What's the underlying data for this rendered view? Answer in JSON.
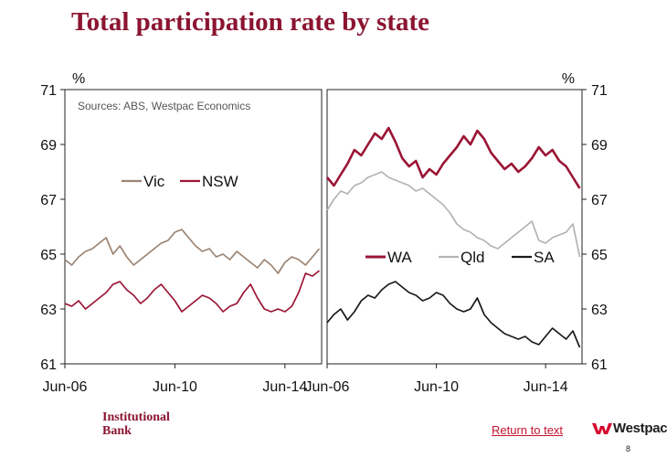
{
  "title": "Total participation rate by state",
  "brand": {
    "line1": "Institutional",
    "line2": "Bank",
    "logo_text": "Westpac"
  },
  "footer": {
    "return_link": "Return to text",
    "page_number": "8"
  },
  "colors": {
    "brand_red": "#8b1431",
    "link_red": "#c4122f"
  },
  "chart_data": [
    {
      "type": "line",
      "unit_label": "%",
      "source_note": "Sources: ABS, Westpac Economics",
      "ylim": [
        61,
        71
      ],
      "y_ticks": [
        "61",
        "63",
        "65",
        "67",
        "69",
        "71"
      ],
      "x_range": [
        "2006-06",
        "2015-10"
      ],
      "x_ticks": [
        {
          "date": "2006-06",
          "label": "Jun-06"
        },
        {
          "date": "2010-06",
          "label": "Jun-10"
        },
        {
          "date": "2014-06",
          "label": "Jun-14"
        }
      ],
      "legend_position": "center-left",
      "series": [
        {
          "name": "Vic",
          "color": "#9a8474",
          "x": [
            "2006-06",
            "2006-09",
            "2006-12",
            "2007-03",
            "2007-06",
            "2007-09",
            "2007-12",
            "2008-03",
            "2008-06",
            "2008-09",
            "2008-12",
            "2009-03",
            "2009-06",
            "2009-09",
            "2009-12",
            "2010-03",
            "2010-06",
            "2010-09",
            "2010-12",
            "2011-03",
            "2011-06",
            "2011-09",
            "2011-12",
            "2012-03",
            "2012-06",
            "2012-09",
            "2012-12",
            "2013-03",
            "2013-06",
            "2013-09",
            "2013-12",
            "2014-03",
            "2014-06",
            "2014-09",
            "2014-12",
            "2015-03",
            "2015-06",
            "2015-09"
          ],
          "values": [
            64.8,
            64.6,
            64.9,
            65.1,
            65.2,
            65.4,
            65.6,
            65.0,
            65.3,
            64.9,
            64.6,
            64.8,
            65.0,
            65.2,
            65.4,
            65.5,
            65.8,
            65.9,
            65.6,
            65.3,
            65.1,
            65.2,
            64.9,
            65.0,
            64.8,
            65.1,
            64.9,
            64.7,
            64.5,
            64.8,
            64.6,
            64.3,
            64.7,
            64.9,
            64.8,
            64.6,
            64.9,
            65.2
          ]
        },
        {
          "name": "NSW",
          "color": "#9b1535",
          "x": [
            "2006-06",
            "2006-09",
            "2006-12",
            "2007-03",
            "2007-06",
            "2007-09",
            "2007-12",
            "2008-03",
            "2008-06",
            "2008-09",
            "2008-12",
            "2009-03",
            "2009-06",
            "2009-09",
            "2009-12",
            "2010-03",
            "2010-06",
            "2010-09",
            "2010-12",
            "2011-03",
            "2011-06",
            "2011-09",
            "2011-12",
            "2012-03",
            "2012-06",
            "2012-09",
            "2012-12",
            "2013-03",
            "2013-06",
            "2013-09",
            "2013-12",
            "2014-03",
            "2014-06",
            "2014-09",
            "2014-12",
            "2015-03",
            "2015-06",
            "2015-09"
          ],
          "values": [
            63.2,
            63.1,
            63.3,
            63.0,
            63.2,
            63.4,
            63.6,
            63.9,
            64.0,
            63.7,
            63.5,
            63.2,
            63.4,
            63.7,
            63.9,
            63.6,
            63.3,
            62.9,
            63.1,
            63.3,
            63.5,
            63.4,
            63.2,
            62.9,
            63.1,
            63.2,
            63.6,
            63.9,
            63.4,
            63.0,
            62.9,
            63.0,
            62.9,
            63.1,
            63.6,
            64.3,
            64.2,
            64.4
          ]
        }
      ],
      "legend": [
        "Vic",
        "NSW"
      ]
    },
    {
      "type": "line",
      "unit_label": "%",
      "ylim": [
        61,
        71
      ],
      "y_ticks": [
        "61",
        "63",
        "65",
        "67",
        "69",
        "71"
      ],
      "x_range": [
        "2006-06",
        "2015-10"
      ],
      "x_ticks": [
        {
          "date": "2006-06",
          "label": "Jun-06"
        },
        {
          "date": "2010-06",
          "label": "Jun-10"
        },
        {
          "date": "2014-06",
          "label": "Jun-14"
        }
      ],
      "legend_position": "center",
      "series": [
        {
          "name": "WA",
          "color": "#9b1535",
          "x": [
            "2006-06",
            "2006-09",
            "2006-12",
            "2007-03",
            "2007-06",
            "2007-09",
            "2007-12",
            "2008-03",
            "2008-06",
            "2008-09",
            "2008-12",
            "2009-03",
            "2009-06",
            "2009-09",
            "2009-12",
            "2010-03",
            "2010-06",
            "2010-09",
            "2010-12",
            "2011-03",
            "2011-06",
            "2011-09",
            "2011-12",
            "2012-03",
            "2012-06",
            "2012-09",
            "2012-12",
            "2013-03",
            "2013-06",
            "2013-09",
            "2013-12",
            "2014-03",
            "2014-06",
            "2014-09",
            "2014-12",
            "2015-03",
            "2015-06",
            "2015-09"
          ],
          "values": [
            67.8,
            67.5,
            67.9,
            68.3,
            68.8,
            68.6,
            69.0,
            69.4,
            69.2,
            69.6,
            69.1,
            68.5,
            68.2,
            68.4,
            67.8,
            68.1,
            67.9,
            68.3,
            68.6,
            68.9,
            69.3,
            69.0,
            69.5,
            69.2,
            68.7,
            68.4,
            68.1,
            68.3,
            68.0,
            68.2,
            68.5,
            68.9,
            68.6,
            68.8,
            68.4,
            68.2,
            67.8,
            67.4
          ]
        },
        {
          "name": "Qld",
          "color": "#b3b3b3",
          "x": [
            "2006-06",
            "2006-09",
            "2006-12",
            "2007-03",
            "2007-06",
            "2007-09",
            "2007-12",
            "2008-03",
            "2008-06",
            "2008-09",
            "2008-12",
            "2009-03",
            "2009-06",
            "2009-09",
            "2009-12",
            "2010-03",
            "2010-06",
            "2010-09",
            "2010-12",
            "2011-03",
            "2011-06",
            "2011-09",
            "2011-12",
            "2012-03",
            "2012-06",
            "2012-09",
            "2012-12",
            "2013-03",
            "2013-06",
            "2013-09",
            "2013-12",
            "2014-03",
            "2014-06",
            "2014-09",
            "2014-12",
            "2015-03",
            "2015-06",
            "2015-09"
          ],
          "values": [
            66.6,
            67.0,
            67.3,
            67.2,
            67.5,
            67.6,
            67.8,
            67.9,
            68.0,
            67.8,
            67.7,
            67.6,
            67.5,
            67.3,
            67.4,
            67.2,
            67.0,
            66.8,
            66.5,
            66.1,
            65.9,
            65.8,
            65.6,
            65.5,
            65.3,
            65.2,
            65.4,
            65.6,
            65.8,
            66.0,
            66.2,
            65.5,
            65.4,
            65.6,
            65.7,
            65.8,
            66.1,
            64.9
          ]
        },
        {
          "name": "SA",
          "color": "#1a1a1a",
          "x": [
            "2006-06",
            "2006-09",
            "2006-12",
            "2007-03",
            "2007-06",
            "2007-09",
            "2007-12",
            "2008-03",
            "2008-06",
            "2008-09",
            "2008-12",
            "2009-03",
            "2009-06",
            "2009-09",
            "2009-12",
            "2010-03",
            "2010-06",
            "2010-09",
            "2010-12",
            "2011-03",
            "2011-06",
            "2011-09",
            "2011-12",
            "2012-03",
            "2012-06",
            "2012-09",
            "2012-12",
            "2013-03",
            "2013-06",
            "2013-09",
            "2013-12",
            "2014-03",
            "2014-06",
            "2014-09",
            "2014-12",
            "2015-03",
            "2015-06",
            "2015-09"
          ],
          "values": [
            62.5,
            62.8,
            63.0,
            62.6,
            62.9,
            63.3,
            63.5,
            63.4,
            63.7,
            63.9,
            64.0,
            63.8,
            63.6,
            63.5,
            63.3,
            63.4,
            63.6,
            63.5,
            63.2,
            63.0,
            62.9,
            63.0,
            63.4,
            62.8,
            62.5,
            62.3,
            62.1,
            62.0,
            61.9,
            62.0,
            61.8,
            61.7,
            62.0,
            62.3,
            62.1,
            61.9,
            62.2,
            61.6
          ]
        }
      ],
      "legend": [
        "WA",
        "Qld",
        "SA"
      ]
    }
  ]
}
